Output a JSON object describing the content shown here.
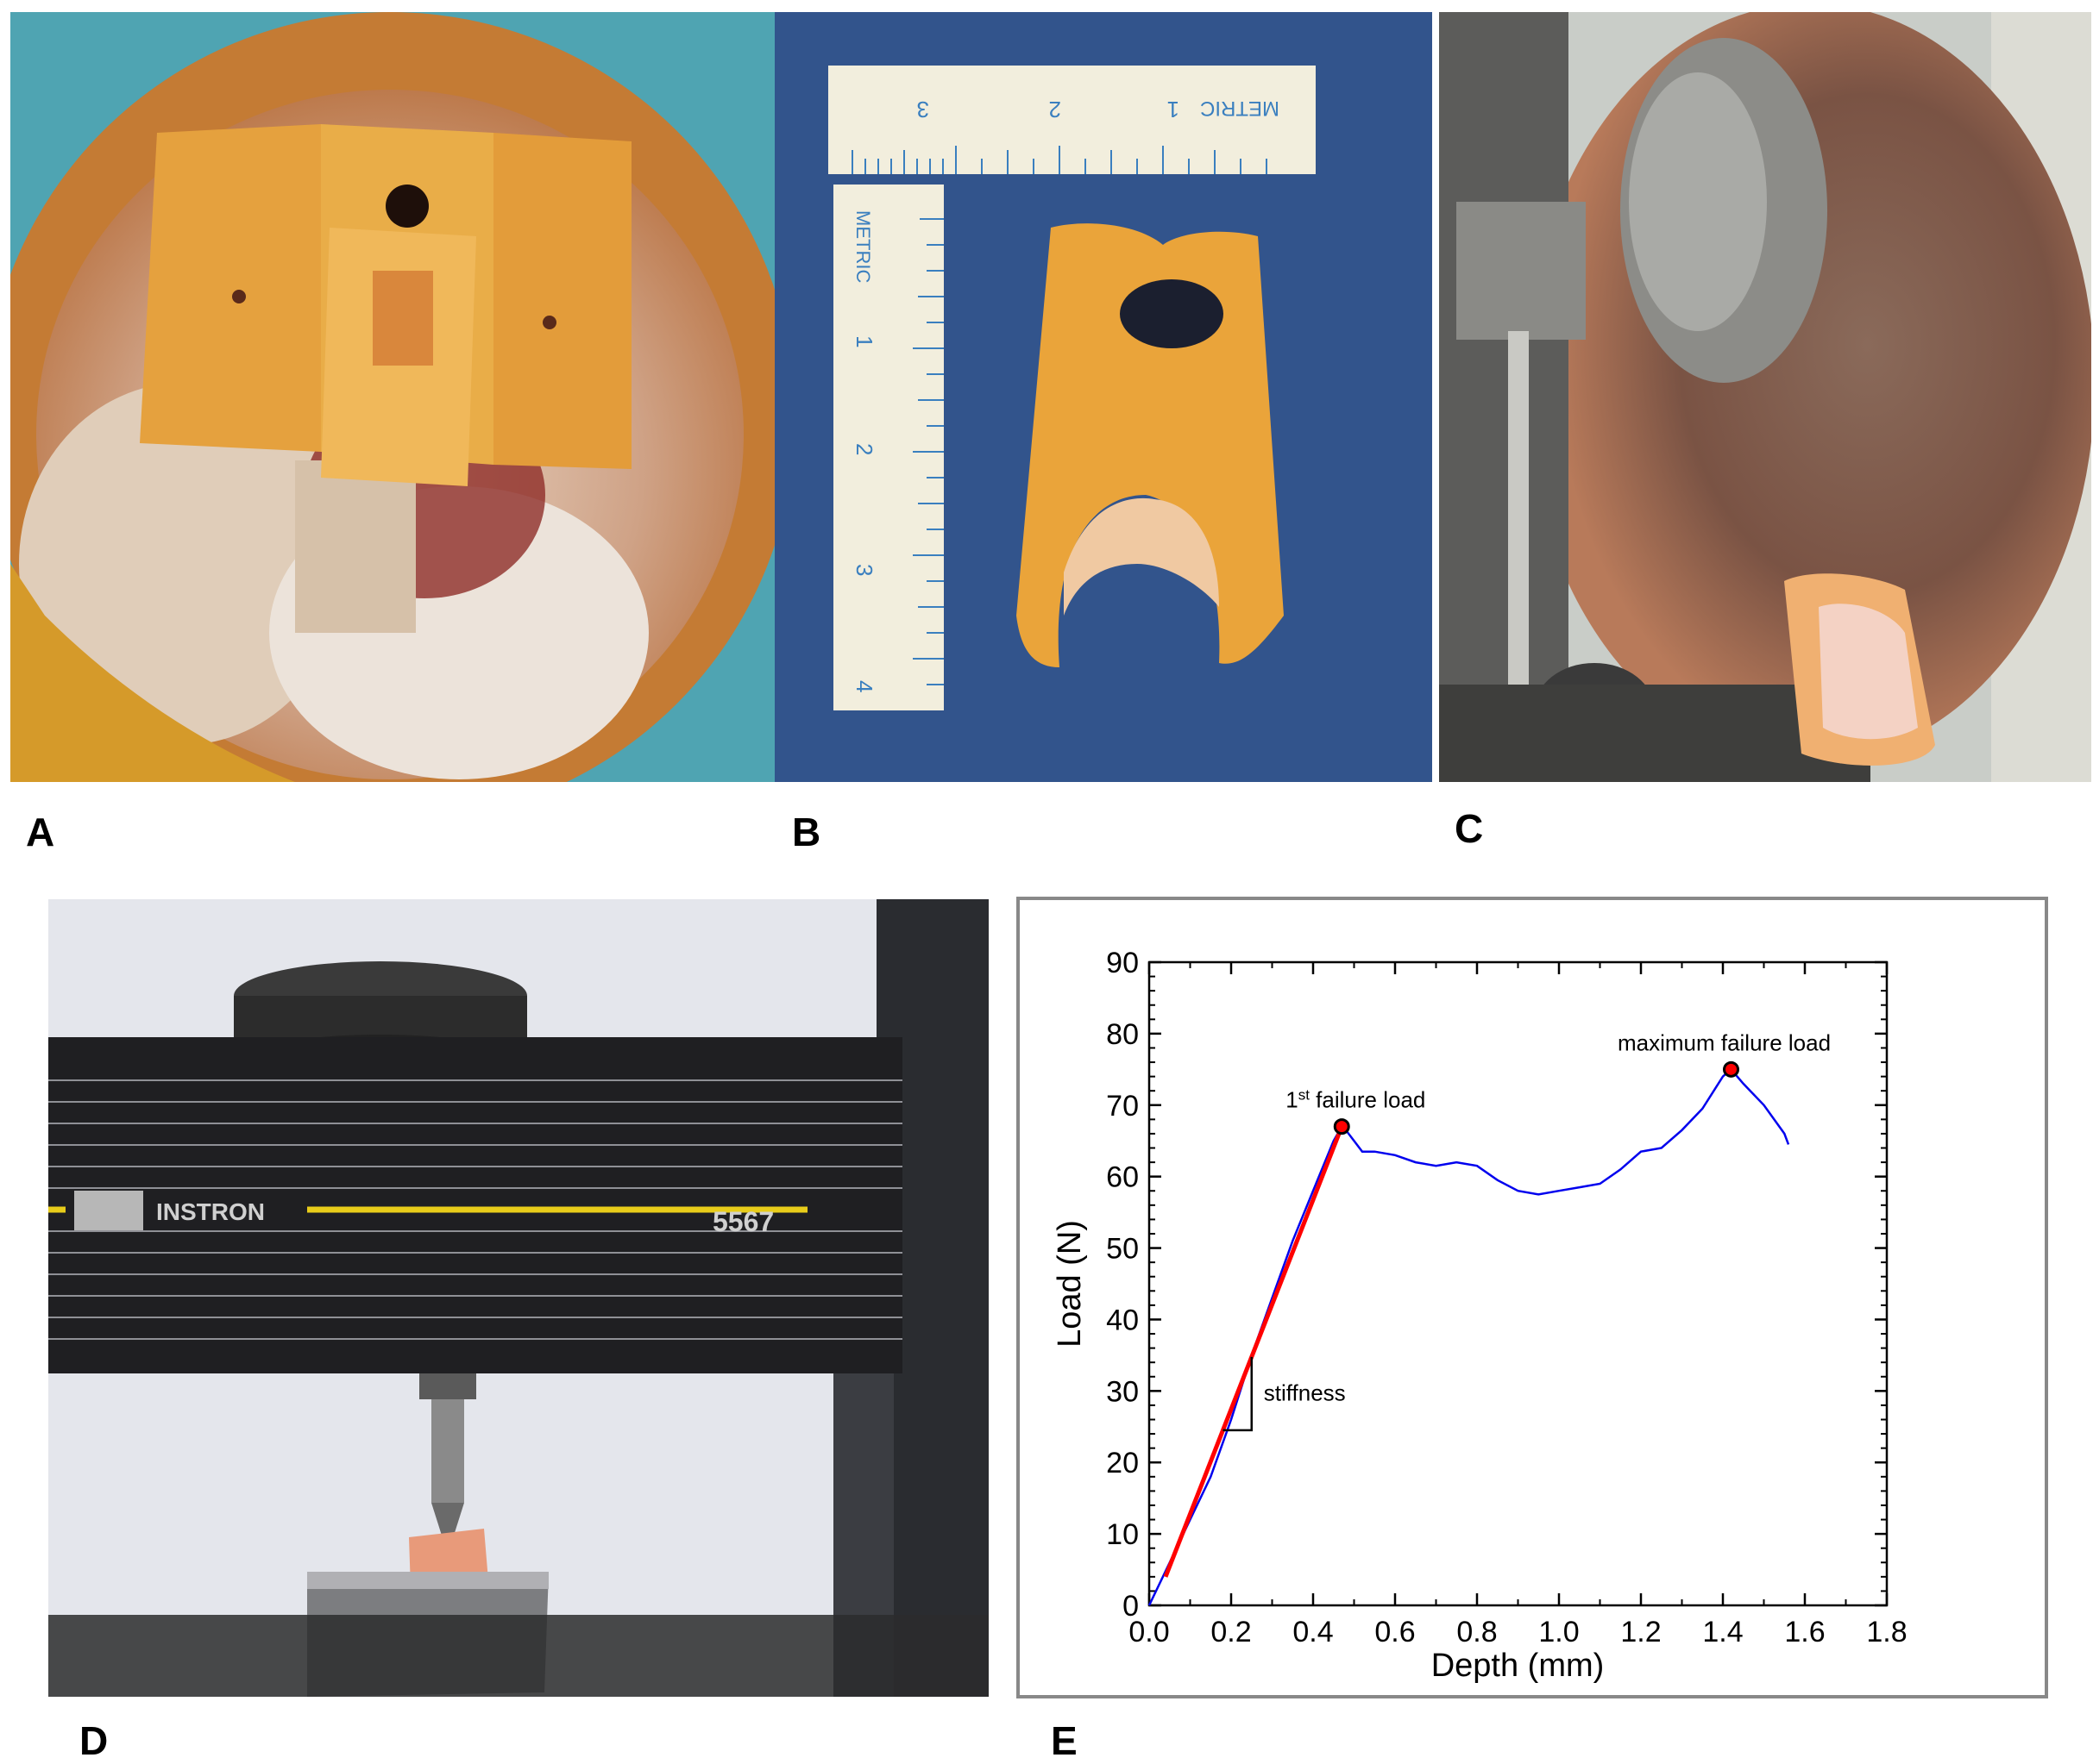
{
  "panels": {
    "a": {
      "label": "A"
    },
    "b": {
      "label": "B",
      "ruler_h": {
        "brand": "METRIC",
        "ticks": [
          "1",
          "2",
          "3"
        ]
      },
      "ruler_v": {
        "brand": "METRIC",
        "ticks": [
          "1",
          "2",
          "3",
          "4"
        ]
      }
    },
    "c": {
      "label": "C"
    },
    "d": {
      "label": "D",
      "brand": "INSTRON",
      "model": "5567"
    },
    "e": {
      "label": "E"
    }
  },
  "colors": {
    "curve": "#0000ee",
    "fit": "#ff0000",
    "marker": "#ff0000"
  },
  "chart_data": {
    "type": "line",
    "xlabel": "Depth (mm)",
    "ylabel": "Load (N)",
    "xlim": [
      0.0,
      1.8
    ],
    "ylim": [
      0,
      90
    ],
    "xticks": [
      "0.0",
      "0.2",
      "0.4",
      "0.6",
      "0.8",
      "1.0",
      "1.2",
      "1.4",
      "1.6",
      "1.8"
    ],
    "yticks": [
      "0",
      "10",
      "20",
      "30",
      "40",
      "50",
      "60",
      "70",
      "80",
      "90"
    ],
    "series": [
      {
        "x": [
          0.0,
          0.05,
          0.1,
          0.15,
          0.2,
          0.25,
          0.3,
          0.35,
          0.4,
          0.45,
          0.47,
          0.48,
          0.5,
          0.52,
          0.55,
          0.6,
          0.65,
          0.7,
          0.75,
          0.8,
          0.85,
          0.9,
          0.95,
          1.0,
          1.05,
          1.1,
          1.15,
          1.2,
          1.25,
          1.3,
          1.35,
          1.4,
          1.42,
          1.45,
          1.5,
          1.55,
          1.56
        ],
        "y": [
          0,
          6,
          12,
          18,
          26,
          35,
          43,
          51,
          58,
          65,
          67,
          66.5,
          65,
          63.5,
          63.5,
          63,
          62,
          61.5,
          62,
          61.5,
          59.5,
          58,
          57.5,
          58,
          58.5,
          59,
          61,
          63.5,
          64,
          66.5,
          69.5,
          74,
          75,
          73,
          70,
          66,
          64.5
        ]
      },
      {
        "x": [
          0.04,
          0.47
        ],
        "y": [
          4,
          67
        ]
      }
    ],
    "annotations": [
      {
        "text": "1st failure load",
        "x": 0.47,
        "y": 67
      },
      {
        "text": "maximum failure load",
        "x": 1.42,
        "y": 75
      },
      {
        "text": "stiffness",
        "x": 0.25,
        "y": 30
      }
    ]
  }
}
